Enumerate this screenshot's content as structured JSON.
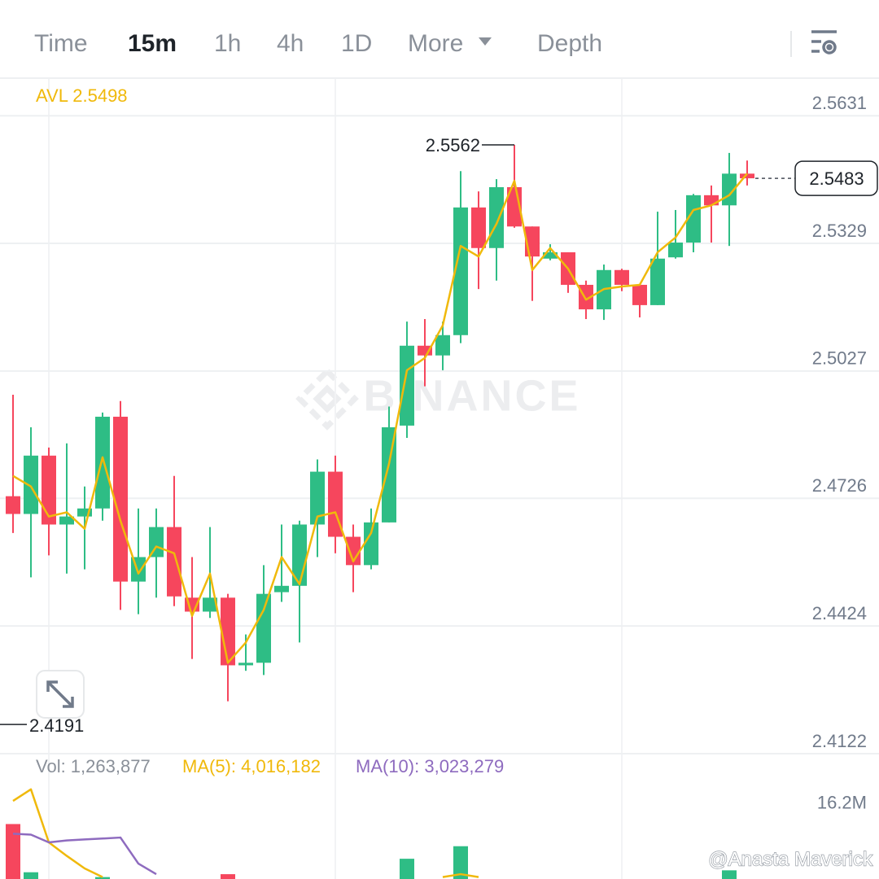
{
  "tabs": [
    "Time",
    "15m",
    "1h",
    "4h",
    "1D",
    "More",
    "Depth"
  ],
  "active_tab": 1,
  "watermark": "BINANCE",
  "credit": "@Anasta Maverick",
  "chart_data": [
    {
      "type": "candlestick",
      "avl_label": "AVL 2.5498",
      "up_color": "#2ebd85",
      "down_color": "#f6465d",
      "ylim": [
        2.4122,
        2.5718
      ],
      "yticks": [
        2.5631,
        2.5329,
        2.5027,
        2.4726,
        2.4424,
        2.4122
      ],
      "grid": true,
      "open": [
        2.4731,
        2.4689,
        2.4827,
        2.4664,
        2.4683,
        2.4702,
        2.4919,
        2.4529,
        2.4587,
        2.4658,
        2.4491,
        2.4458,
        2.4491,
        2.4331,
        2.4337,
        2.4504,
        2.4519,
        2.4664,
        2.4789,
        2.4635,
        2.4568,
        2.4669,
        2.4898,
        2.5087,
        2.5064,
        2.5112,
        2.5414,
        2.5318,
        2.5462,
        2.5369,
        2.5293,
        2.5308,
        2.5231,
        2.5173,
        2.5266,
        2.5231,
        2.5183,
        2.5296,
        2.5331,
        2.5443,
        2.5419,
        2.5494
      ],
      "high": [
        2.4971,
        2.4894,
        2.4846,
        2.4856,
        2.4754,
        2.4929,
        2.4956,
        2.4702,
        2.4702,
        2.4779,
        2.4587,
        2.4658,
        2.45,
        2.4404,
        2.4568,
        2.4664,
        2.4673,
        2.4818,
        2.4827,
        2.4664,
        2.4702,
        2.4943,
        2.5144,
        2.515,
        2.5144,
        2.55,
        2.5452,
        2.5481,
        2.5562,
        2.5369,
        2.5327,
        2.5308,
        2.5241,
        2.5279,
        2.5269,
        2.5231,
        2.5404,
        2.5408,
        2.5446,
        2.5466,
        2.5543,
        2.5525
      ],
      "low": [
        2.4644,
        2.4539,
        2.4591,
        2.4548,
        2.4558,
        2.4673,
        2.4462,
        2.4452,
        2.4491,
        2.4471,
        2.4346,
        2.4443,
        2.4246,
        2.4318,
        2.4308,
        2.4481,
        2.4385,
        2.4587,
        2.4596,
        2.4504,
        2.4558,
        2.4669,
        2.4869,
        2.4991,
        2.5029,
        2.5093,
        2.5221,
        2.5241,
        2.5366,
        2.5193,
        2.5289,
        2.5212,
        2.515,
        2.5148,
        2.5216,
        2.5154,
        2.5183,
        2.5293,
        2.5308,
        2.5331,
        2.5323,
        2.5466
      ],
      "close": [
        2.4689,
        2.4827,
        2.4664,
        2.4683,
        2.4702,
        2.4919,
        2.4529,
        2.4587,
        2.4658,
        2.4494,
        2.4458,
        2.4491,
        2.4331,
        2.4337,
        2.45,
        2.4519,
        2.4664,
        2.4789,
        2.4635,
        2.4568,
        2.4669,
        2.4894,
        2.5087,
        2.5064,
        2.5112,
        2.5414,
        2.5318,
        2.5462,
        2.5369,
        2.5298,
        2.5308,
        2.5231,
        2.5173,
        2.5266,
        2.5231,
        2.5183,
        2.5293,
        2.5331,
        2.5443,
        2.5419,
        2.5494,
        2.5483
      ],
      "ma": {
        "color": "#f0b90b",
        "values": [
          2.4779,
          2.4754,
          2.4683,
          2.4693,
          2.4654,
          2.4823,
          2.4673,
          2.4548,
          2.4612,
          2.4596,
          2.4448,
          2.4548,
          2.4337,
          2.4385,
          2.4462,
          2.4587,
          2.4523,
          2.4683,
          2.4693,
          2.4577,
          2.4644,
          2.4808,
          2.5029,
          2.5058,
          2.5135,
          2.5323,
          2.5298,
          2.5375,
          2.5477,
          2.5266,
          2.5318,
          2.5269,
          2.5196,
          2.5221,
          2.5227,
          2.5231,
          2.5308,
          2.5343,
          2.5408,
          2.5419,
          2.5443,
          2.5494
        ]
      },
      "low_annotation": 2.4191
    },
    {
      "type": "bar",
      "vol_label": "Vol: 1,263,877",
      "ma5_label": "MA(5): 4,016,182",
      "ma10_label": "MA(10): 3,023,279",
      "ylim": [
        8400000,
        21400000
      ],
      "yticks": [
        {
          "value": 16200000,
          "label": "16.2M"
        }
      ],
      "values": [
        14100000,
        9100000,
        null,
        null,
        null,
        8600000,
        null,
        null,
        null,
        null,
        null,
        null,
        8900000,
        null,
        null,
        null,
        null,
        null,
        null,
        null,
        null,
        null,
        10500000,
        null,
        null,
        11800000,
        null,
        null,
        null,
        null,
        null,
        null,
        null,
        null,
        null,
        null,
        null,
        null,
        null,
        null,
        9300000,
        null
      ],
      "series": [
        {
          "name": "MA(5)",
          "color": "#f0b90b",
          "values": [
            16500000,
            17700000,
            12200000,
            10800000,
            9500000,
            8600000,
            null,
            null,
            null,
            null,
            null,
            null,
            null,
            null,
            null,
            null,
            null,
            null,
            null,
            null,
            null,
            null,
            null,
            null,
            8600000,
            8900000,
            8600000,
            null,
            null,
            null,
            null,
            null,
            null,
            null,
            null,
            null,
            null,
            null,
            null,
            null,
            null,
            null
          ]
        },
        {
          "name": "MA(10)",
          "color": "#8e6bbf",
          "values": [
            13100000,
            13000000,
            12200000,
            12400000,
            12500000,
            12600000,
            12700000,
            10000000,
            8900000,
            null,
            null,
            null,
            null,
            null,
            null,
            null,
            null,
            null,
            null,
            null,
            null,
            null,
            null,
            null,
            null,
            null,
            null,
            null,
            null,
            null,
            null,
            null,
            null,
            null,
            null,
            null,
            null,
            null,
            null,
            null,
            null,
            null
          ]
        }
      ]
    }
  ]
}
